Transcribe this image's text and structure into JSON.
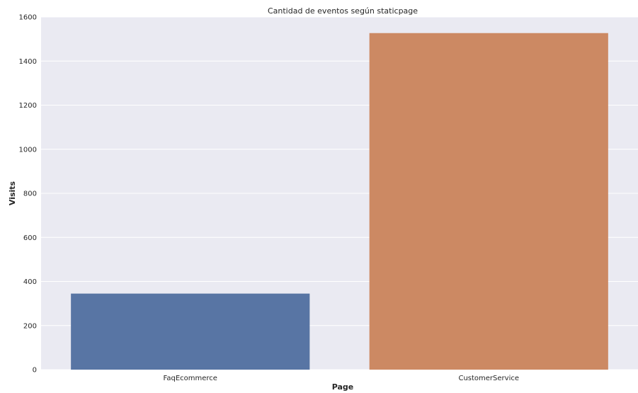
{
  "chart_data": {
    "type": "bar",
    "title": "Cantidad de eventos según staticpage",
    "xlabel": "Page",
    "ylabel": "Visits",
    "categories": [
      "FaqEcommerce",
      "CustomerService"
    ],
    "values": [
      345,
      1527
    ],
    "colors": [
      "#5875a4",
      "#cc8963"
    ],
    "ylim": [
      0,
      1600
    ],
    "yticks": [
      0,
      200,
      400,
      600,
      800,
      1000,
      1200,
      1400,
      1600
    ],
    "ytick_labels": [
      "0",
      "200",
      "400",
      "600",
      "800",
      "1000",
      "1200",
      "1400",
      "1600"
    ],
    "grid": true,
    "background": "#eaeaf2",
    "gridline_color": "#ffffff"
  }
}
